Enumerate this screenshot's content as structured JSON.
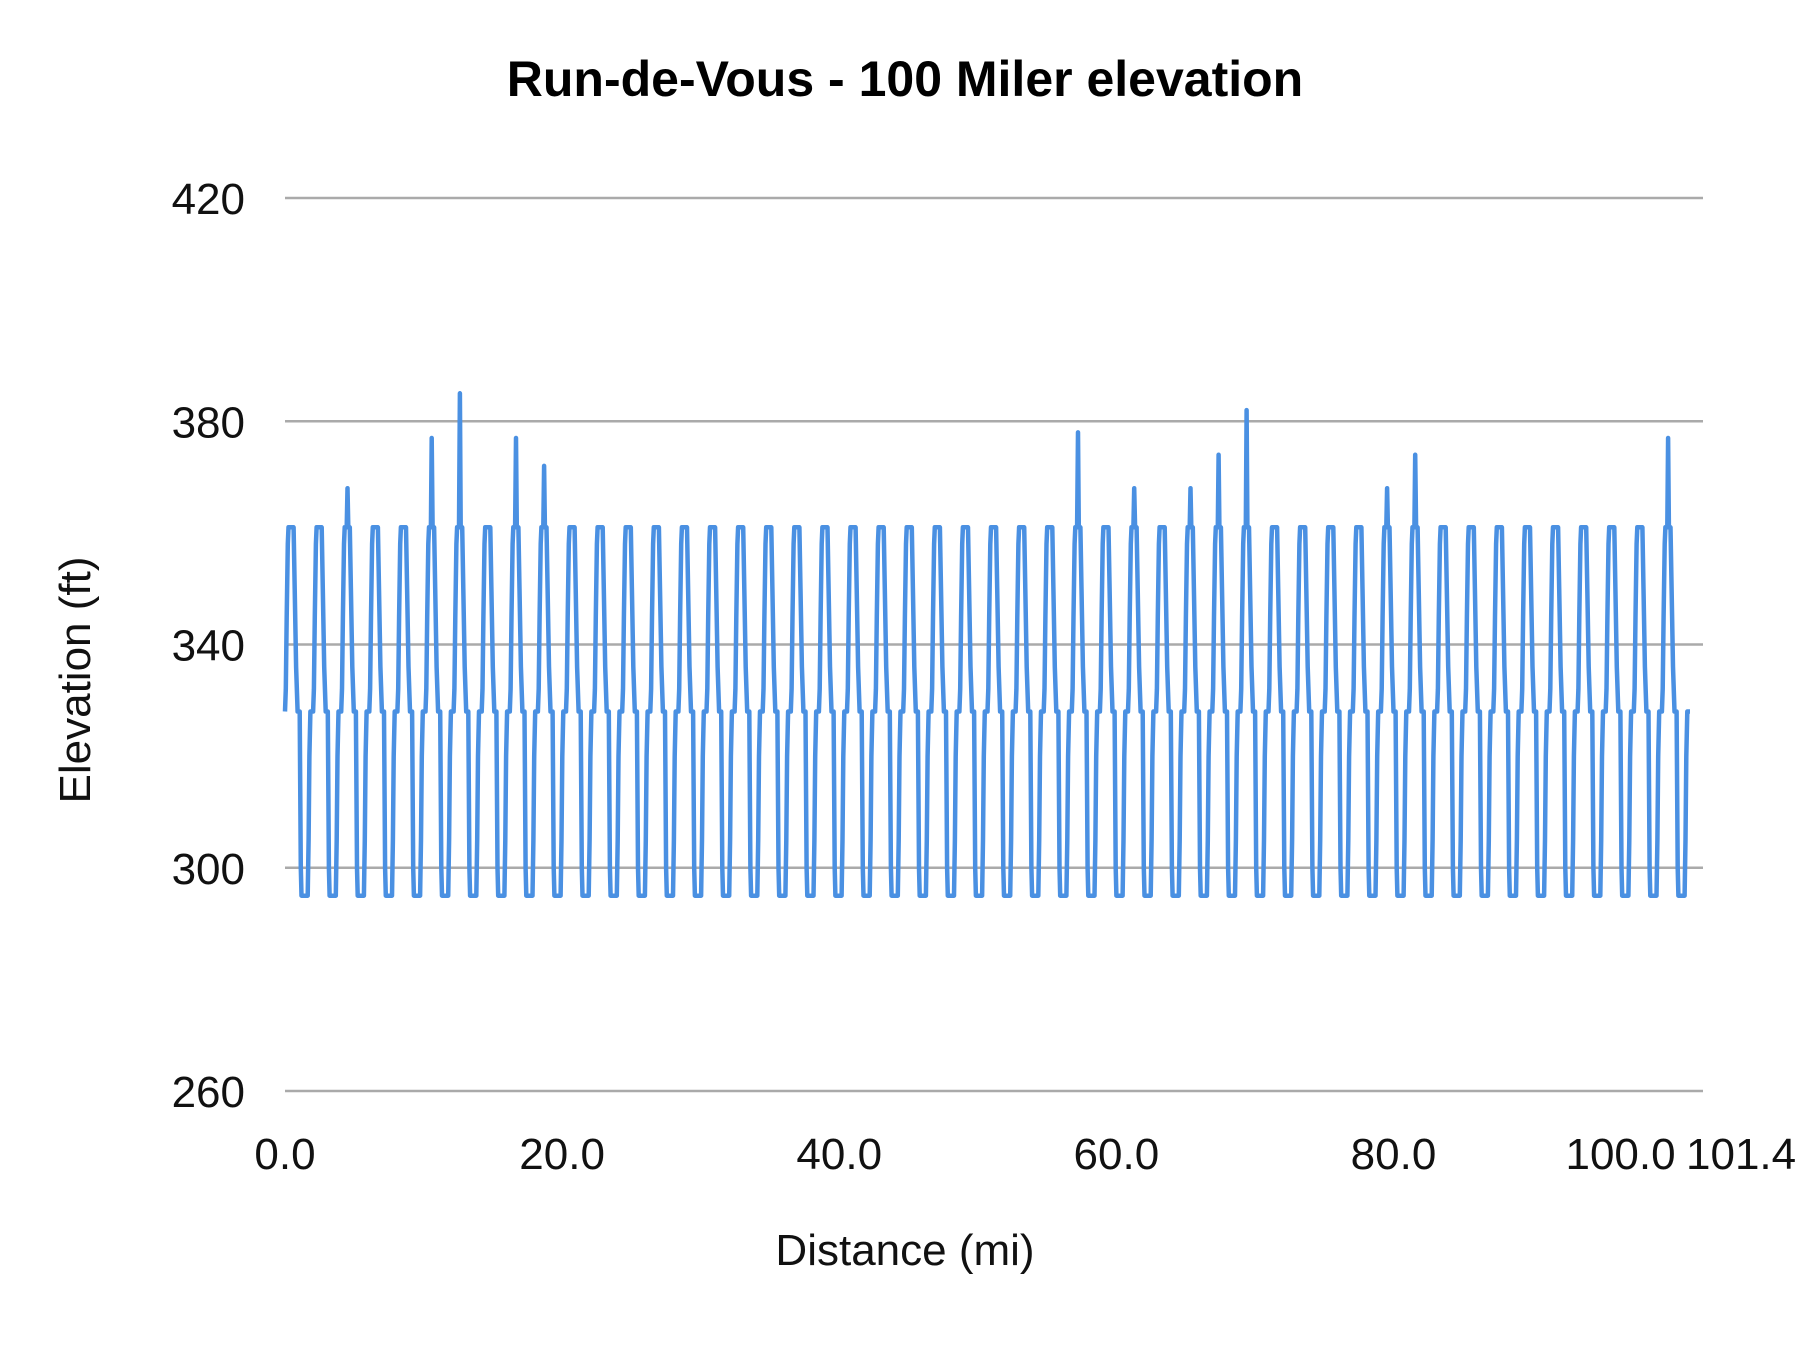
{
  "chart_data": {
    "type": "line",
    "title": "Run-de-Vous - 100 Miler elevation",
    "xlabel": "Distance (mi)",
    "ylabel": "Elevation (ft)",
    "xlim": [
      0,
      101.4
    ],
    "ylim": [
      260,
      420
    ],
    "x_ticks": [
      "0.0",
      "20.0",
      "40.0",
      "60.0",
      "80.0",
      "100.0",
      "101.4"
    ],
    "x_tick_values": [
      0,
      20,
      40,
      60,
      80,
      100,
      101.4
    ],
    "y_ticks": [
      260,
      300,
      340,
      380,
      420
    ],
    "grid": "horizontal",
    "legend": "none",
    "line_color": "#4a90e2",
    "series": [
      {
        "laps": 50,
        "lap_length_mi": 2.028,
        "lap_profile": [
          [
            0,
            328
          ],
          [
            0.06,
            332
          ],
          [
            0.12,
            345
          ],
          [
            0.2,
            358
          ],
          [
            0.25,
            361
          ],
          [
            0.62,
            361
          ],
          [
            0.7,
            350
          ],
          [
            0.8,
            336
          ],
          [
            0.91,
            328
          ],
          [
            1.06,
            328
          ],
          [
            1.1,
            315
          ],
          [
            1.14,
            300
          ],
          [
            1.19,
            295
          ],
          [
            1.64,
            295
          ],
          [
            1.7,
            305
          ],
          [
            1.76,
            320
          ],
          [
            1.83,
            328
          ],
          [
            2.028,
            328
          ]
        ],
        "peaks": [
          {
            "x": 4.51,
            "y": 368
          },
          {
            "x": 10.59,
            "y": 377
          },
          {
            "x": 12.62,
            "y": 385
          },
          {
            "x": 16.67,
            "y": 377
          },
          {
            "x": 18.7,
            "y": 372
          },
          {
            "x": 57.23,
            "y": 378
          },
          {
            "x": 61.29,
            "y": 368
          },
          {
            "x": 65.35,
            "y": 368
          },
          {
            "x": 67.38,
            "y": 374
          },
          {
            "x": 69.4,
            "y": 382
          },
          {
            "x": 79.54,
            "y": 368
          },
          {
            "x": 81.57,
            "y": 374
          },
          {
            "x": 99.82,
            "y": 377
          }
        ]
      }
    ]
  }
}
